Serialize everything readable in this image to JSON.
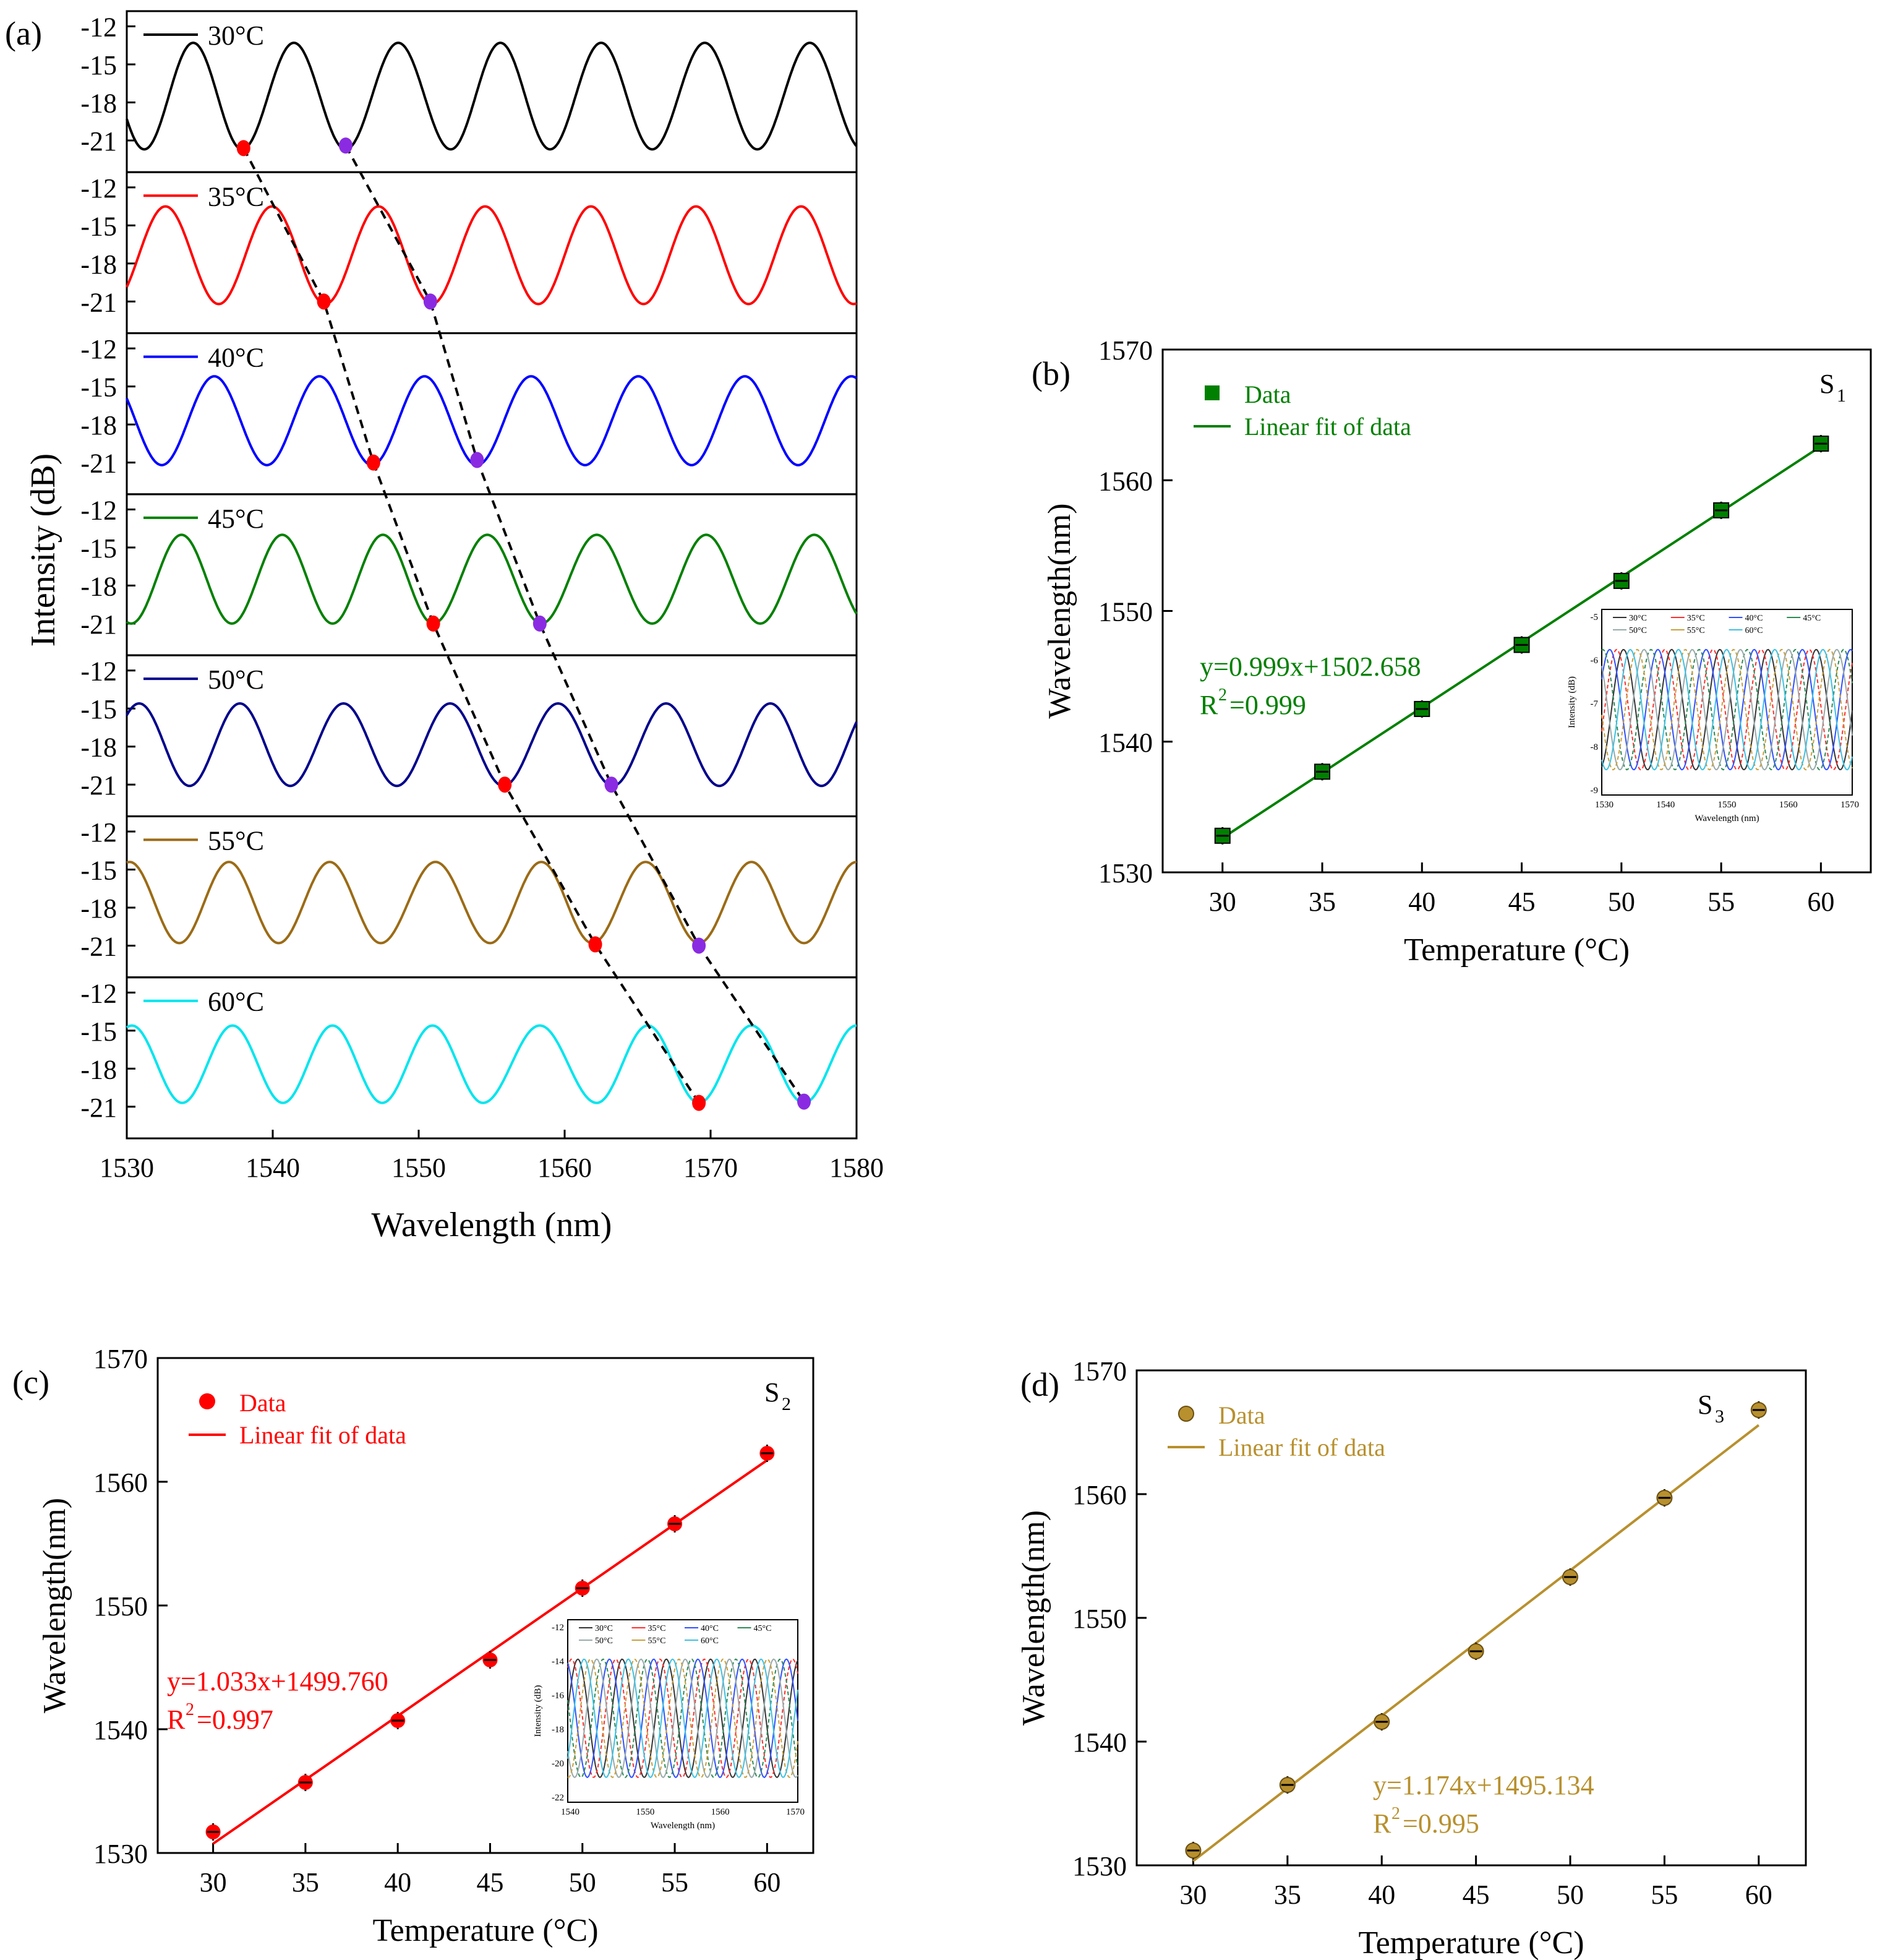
{
  "panel_labels": [
    "(a)",
    "(b)",
    "(c)",
    "(d)"
  ],
  "chart_data": [
    {
      "panel": "(a)",
      "type": "line",
      "xlabel": "Wavelength (nm)",
      "ylabel": "Intensity (dB)",
      "xlim": [
        1530,
        1580
      ],
      "xticks": [
        "1530",
        "1540",
        "1550",
        "1560",
        "1570",
        "1580"
      ],
      "yticks": [
        "-12",
        "-15",
        "-18",
        "-21"
      ],
      "ylim": [
        -23.5,
        -10.8
      ],
      "series": [
        {
          "name": "30°C",
          "color": "#000000",
          "dips": [
            1531.2,
            1537.9,
            1545.0,
            1552.2,
            1559.0,
            1566.0,
            1573.2
          ],
          "max": -13.3,
          "min": -21.7
        },
        {
          "name": "35°C",
          "color": "#ff0000",
          "dips": [
            1536.3,
            1543.6,
            1550.9,
            1558.2,
            1565.4,
            1572.6,
            1579.8
          ],
          "max": -13.5,
          "min": -21.2
        },
        {
          "name": "40°C",
          "color": "#0000ff",
          "dips": [
            1532.4,
            1539.6,
            1546.8,
            1554.0,
            1561.4,
            1568.7,
            1576.0
          ],
          "max": -14.2,
          "min": -21.2
        },
        {
          "name": "45°C",
          "color": "#008000",
          "dips": [
            1530.3,
            1537.2,
            1544.1,
            1551.0,
            1558.4,
            1566.0,
            1573.4
          ],
          "max": -14.0,
          "min": -21.0
        },
        {
          "name": "50°C",
          "color": "#00008b",
          "dips": [
            1534.3,
            1541.2,
            1548.5,
            1555.8,
            1563.3,
            1570.6,
            1577.6
          ],
          "max": -14.6,
          "min": -21.1
        },
        {
          "name": "55°C",
          "color": "#9b6b16",
          "dips": [
            1533.6,
            1540.4,
            1547.4,
            1554.9,
            1561.9,
            1569.2,
            1576.4
          ],
          "max": -14.4,
          "min": -20.8
        },
        {
          "name": "60°C",
          "color": "#00e5ee",
          "dips": [
            1533.8,
            1540.7,
            1547.5,
            1554.4,
            1562.2,
            1569.2,
            1576.4
          ],
          "max": -14.6,
          "min": -20.7
        }
      ],
      "markers": {
        "red": [
          [
            1538.0,
            -21.6
          ],
          [
            1543.5,
            -21.0
          ],
          [
            1546.9,
            -21.0
          ],
          [
            1551.0,
            -21.0
          ],
          [
            1555.9,
            -21.0
          ],
          [
            1562.1,
            -20.9
          ],
          [
            1569.2,
            -20.7
          ]
        ],
        "purple": [
          [
            1545.0,
            -21.4
          ],
          [
            1550.8,
            -21.0
          ],
          [
            1554.0,
            -20.8
          ],
          [
            1558.3,
            -21.0
          ],
          [
            1563.2,
            -21.0
          ],
          [
            1569.2,
            -21.0
          ],
          [
            1576.4,
            -20.6
          ]
        ]
      }
    },
    {
      "panel": "(b)",
      "type": "scatter",
      "xlabel": "Temperature (°C)",
      "ylabel": "Wavelength(nm)",
      "xlim": [
        27,
        62.5
      ],
      "ylim": [
        1530,
        1570
      ],
      "xticks": [
        "30",
        "35",
        "40",
        "45",
        "50",
        "55",
        "60"
      ],
      "yticks": [
        "1530",
        "1540",
        "1550",
        "1560",
        "1570"
      ],
      "marker": "square",
      "color": "#008000",
      "legend": [
        "Data",
        "Linear fit of data"
      ],
      "sensor": "S",
      "sensor_sub": "1",
      "equation": "y=0.999x+1502.658",
      "r2_prefix": "R",
      "r2_sup": "2",
      "r2_value": "=0.999",
      "x": [
        30,
        35,
        40,
        45,
        50,
        55,
        60
      ],
      "y": [
        1532.8,
        1537.7,
        1542.5,
        1547.4,
        1552.3,
        1557.7,
        1562.8
      ],
      "fit": {
        "slope": 0.999,
        "intercept": 1502.658,
        "x": [
          30,
          60
        ]
      },
      "inset": {
        "xlabel": "Wavelength (nm)",
        "ylabel": "Intensity (dB)",
        "xticks": [
          "1530",
          "1540",
          "1550",
          "1560",
          "1570"
        ],
        "yticks": [
          "-5",
          "-6",
          "-7",
          "-8",
          "-9"
        ],
        "legend": [
          "30°C",
          "35°C",
          "40°C",
          "45°C",
          "50°C",
          "55°C",
          "60°C"
        ]
      }
    },
    {
      "panel": "(c)",
      "type": "scatter",
      "xlabel": "Temperature (°C)",
      "ylabel": "Wavelength(nm)",
      "xlim": [
        27,
        62.5
      ],
      "ylim": [
        1530,
        1570
      ],
      "xticks": [
        "30",
        "35",
        "40",
        "45",
        "50",
        "55",
        "60"
      ],
      "yticks": [
        "1530",
        "1540",
        "1550",
        "1560",
        "1570"
      ],
      "marker": "circle",
      "color": "#ff0000",
      "legend": [
        "Data",
        "Linear fit of data"
      ],
      "sensor": "S",
      "sensor_sub": "2",
      "equation": "y=1.033x+1499.760",
      "r2_prefix": "R",
      "r2_sup": "2",
      "r2_value": "=0.997",
      "x": [
        30,
        35,
        40,
        45,
        50,
        55,
        60
      ],
      "y": [
        1531.7,
        1535.7,
        1540.7,
        1545.6,
        1551.4,
        1556.6,
        1562.3
      ],
      "fit": {
        "slope": 1.033,
        "intercept": 1499.76,
        "x": [
          30,
          60
        ]
      },
      "inset": {
        "xlabel": "Wavelength (nm)",
        "ylabel": "Intensity (dB)",
        "xticks": [
          "1540",
          "1550",
          "1560",
          "1570"
        ],
        "yticks": [
          "-12",
          "-14",
          "-16",
          "-18",
          "-20",
          "-22"
        ],
        "legend": [
          "30°C",
          "35°C",
          "40°C",
          "45°C",
          "50°C",
          "55°C",
          "60°C"
        ]
      }
    },
    {
      "panel": "(d)",
      "type": "scatter",
      "xlabel": "Temperature (°C)",
      "ylabel": "Wavelength(nm)",
      "xlim": [
        27,
        62.5
      ],
      "ylim": [
        1530,
        1570
      ],
      "xticks": [
        "30",
        "35",
        "40",
        "45",
        "50",
        "55",
        "60"
      ],
      "yticks": [
        "1530",
        "1540",
        "1550",
        "1560",
        "1570"
      ],
      "marker": "sphere",
      "color": "#b8902e",
      "legend": [
        "Data",
        "Linear fit of data"
      ],
      "sensor": "S",
      "sensor_sub": "3",
      "equation": "y=1.174x+1495.134",
      "r2_prefix": "R",
      "r2_sup": "2",
      "r2_value": "=0.995",
      "x": [
        30,
        35,
        40,
        45,
        50,
        55,
        60
      ],
      "y": [
        1531.2,
        1536.5,
        1541.6,
        1547.3,
        1553.3,
        1559.7,
        1566.8
      ],
      "fit": {
        "slope": 1.174,
        "intercept": 1495.134,
        "x": [
          30,
          60
        ]
      }
    }
  ]
}
